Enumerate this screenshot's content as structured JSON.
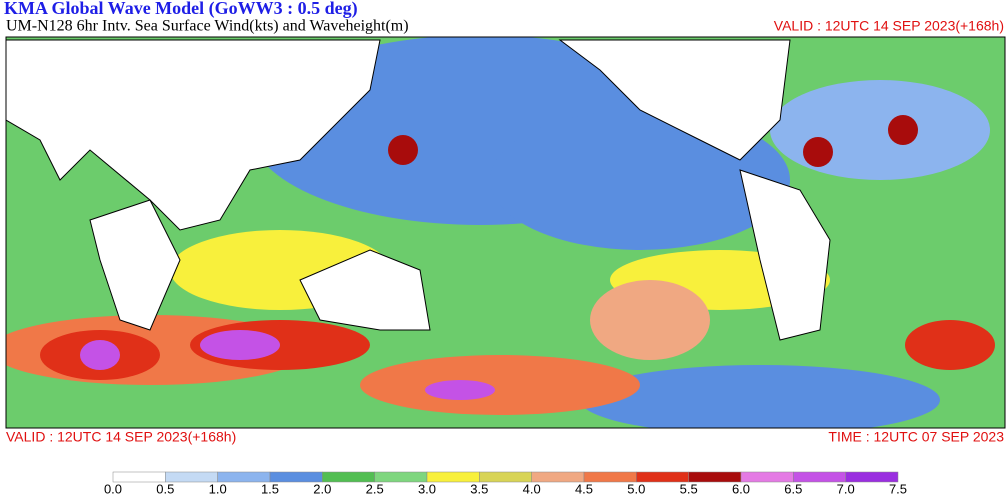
{
  "header": {
    "title": "KMA  Global Wave Model (GoWW3 : 0.5 deg)",
    "subtitle": "UM-N128  6hr Intv. Sea Surface Wind(kts) and Waveheight(m)",
    "valid_top": "VALID : 12UTC 14 SEP 2023(+168h)"
  },
  "footer": {
    "valid": "VALID : 12UTC 14 SEP 2023(+168h)",
    "time": "TIME : 12UTC 07 SEP 2023"
  },
  "colorbar": {
    "labels": [
      "0.0",
      "0.5",
      "1.0",
      "1.5",
      "2.0",
      "2.5",
      "3.0",
      "3.5",
      "4.0",
      "4.5",
      "5.0",
      "5.5",
      "6.0",
      "6.5",
      "7.0",
      "7.5"
    ],
    "colors": [
      "#ffffff",
      "#c4daf4",
      "#8cb4ee",
      "#5a8ee0",
      "#52be52",
      "#7ed67e",
      "#f8f03c",
      "#d8d456",
      "#f0a882",
      "#f07848",
      "#e03018",
      "#a80c0c",
      "#e47ae4",
      "#c452e6",
      "#9a2ee0"
    ]
  }
}
